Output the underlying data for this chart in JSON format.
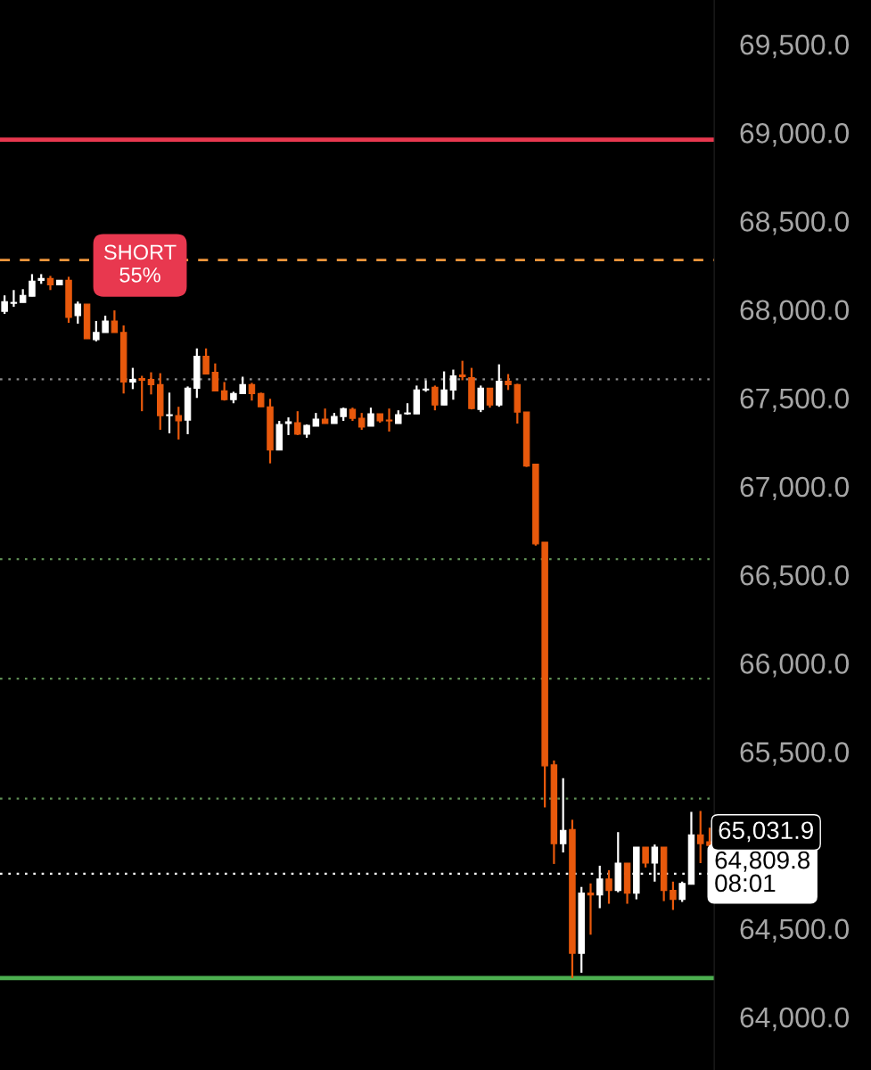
{
  "chart_data": {
    "type": "candlestick",
    "categories": [
      null,
      null,
      null,
      null,
      null,
      null,
      null,
      null,
      null,
      null,
      null,
      null,
      null,
      null,
      null,
      null,
      null,
      null,
      null,
      null,
      null,
      null,
      null,
      null,
      null,
      null,
      null,
      null,
      null,
      null,
      null,
      null,
      null,
      null,
      null,
      null,
      null,
      null,
      null,
      null,
      null,
      null,
      null,
      null,
      null,
      null,
      null,
      null,
      null,
      null,
      null,
      null,
      null,
      null,
      null,
      null,
      null,
      null,
      null,
      null,
      null,
      null,
      null,
      null,
      null,
      null,
      null,
      null,
      null,
      null,
      null,
      null,
      null,
      null,
      null,
      null,
      null,
      null
    ],
    "ohlc": [
      [
        67990,
        68080,
        67975,
        68045
      ],
      [
        68035,
        68110,
        68015,
        68040
      ],
      [
        68040,
        68115,
        68040,
        68080
      ],
      [
        68075,
        68200,
        68075,
        68160
      ],
      [
        68165,
        68200,
        68145,
        68175
      ],
      [
        68175,
        68190,
        68110,
        68140
      ],
      [
        68140,
        68165,
        68140,
        68165
      ],
      [
        68165,
        68185,
        67925,
        67955
      ],
      [
        67965,
        68045,
        67920,
        68030
      ],
      [
        68030,
        68030,
        67835,
        67835
      ],
      [
        67830,
        67935,
        67820,
        67870
      ],
      [
        67870,
        67965,
        67870,
        67935
      ],
      [
        67935,
        67995,
        67870,
        67870
      ],
      [
        67870,
        67910,
        67525,
        67590
      ],
      [
        67590,
        67670,
        67550,
        67605
      ],
      [
        67610,
        67625,
        67425,
        67600
      ],
      [
        67605,
        67645,
        67520,
        67575
      ],
      [
        67575,
        67640,
        67320,
        67400
      ],
      [
        67400,
        67530,
        67300,
        67405
      ],
      [
        67400,
        67450,
        67265,
        67370
      ],
      [
        67375,
        67565,
        67295,
        67555
      ],
      [
        67555,
        67780,
        67500,
        67735
      ],
      [
        67735,
        67780,
        67635,
        67635
      ],
      [
        67645,
        67695,
        67540,
        67540
      ],
      [
        67540,
        67590,
        67485,
        67490
      ],
      [
        67490,
        67535,
        67470,
        67525
      ],
      [
        67525,
        67620,
        67525,
        67575
      ],
      [
        67575,
        67585,
        67485,
        67525
      ],
      [
        67525,
        67530,
        67450,
        67450
      ],
      [
        67450,
        67495,
        67130,
        67205
      ],
      [
        67205,
        67370,
        67205,
        67350
      ],
      [
        67355,
        67390,
        67290,
        67365
      ],
      [
        67360,
        67425,
        67290,
        67295
      ],
      [
        67295,
        67350,
        67275,
        67345
      ],
      [
        67340,
        67415,
        67340,
        67380
      ],
      [
        67380,
        67440,
        67355,
        67355
      ],
      [
        67355,
        67415,
        67355,
        67395
      ],
      [
        67395,
        67445,
        67370,
        67440
      ],
      [
        67435,
        67445,
        67370,
        67385
      ],
      [
        67385,
        67415,
        67320,
        67335
      ],
      [
        67340,
        67445,
        67340,
        67410
      ],
      [
        67410,
        67410,
        67360,
        67370
      ],
      [
        67375,
        67440,
        67310,
        67370
      ],
      [
        67355,
        67430,
        67355,
        67405
      ],
      [
        67410,
        67470,
        67405,
        67415
      ],
      [
        67410,
        67570,
        67410,
        67545
      ],
      [
        67545,
        67600,
        67535,
        67550
      ],
      [
        67560,
        67570,
        67430,
        67460
      ],
      [
        67460,
        67650,
        67460,
        67545
      ],
      [
        67545,
        67660,
        67490,
        67625
      ],
      [
        67630,
        67710,
        67600,
        67620
      ],
      [
        67615,
        67670,
        67435,
        67440
      ],
      [
        67435,
        67570,
        67420,
        67555
      ],
      [
        67555,
        67555,
        67445,
        67460
      ],
      [
        67460,
        67690,
        67450,
        67595
      ],
      [
        67595,
        67635,
        67545,
        67575
      ],
      [
        67575,
        67580,
        67355,
        67420
      ],
      [
        67420,
        67420,
        67110,
        67115
      ],
      [
        67125,
        67125,
        66665,
        66675
      ],
      [
        66685,
        66685,
        65185,
        65420
      ],
      [
        65425,
        65450,
        64865,
        64980
      ],
      [
        64980,
        65350,
        64930,
        65055
      ],
      [
        65060,
        65115,
        64220,
        64360
      ],
      [
        64360,
        64735,
        64250,
        64700
      ],
      [
        64700,
        64755,
        64465,
        64690
      ],
      [
        64690,
        64855,
        64615,
        64780
      ],
      [
        64780,
        64830,
        64640,
        64715
      ],
      [
        64715,
        65045,
        64705,
        64870
      ],
      [
        64870,
        64870,
        64640,
        64700
      ],
      [
        64700,
        64960,
        64665,
        64960
      ],
      [
        64960,
        64960,
        64845,
        64870
      ],
      [
        64870,
        64975,
        64765,
        64960
      ],
      [
        64960,
        64960,
        64655,
        64715
      ],
      [
        64715,
        64765,
        64605,
        64665
      ],
      [
        64665,
        64765,
        64650,
        64755
      ],
      [
        64750,
        65160,
        64750,
        65030
      ],
      [
        65030,
        65165,
        64870,
        64980
      ],
      [
        64990,
        65070,
        64950,
        64970
      ]
    ],
    "colors": [
      "#ffffff",
      "#ffffff",
      "#ffffff",
      "#ffffff",
      "#ffffff",
      "#e8590c",
      "#ffffff",
      "#e8590c",
      "#ffffff",
      "#e8590c",
      "#ffffff",
      "#ffffff",
      "#e8590c",
      "#e8590c",
      "#ffffff",
      "#e8590c",
      "#e8590c",
      "#e8590c",
      "#ffffff",
      "#e8590c",
      "#ffffff",
      "#ffffff",
      "#e8590c",
      "#e8590c",
      "#e8590c",
      "#ffffff",
      "#ffffff",
      "#e8590c",
      "#e8590c",
      "#e8590c",
      "#ffffff",
      "#ffffff",
      "#e8590c",
      "#ffffff",
      "#ffffff",
      "#e8590c",
      "#ffffff",
      "#ffffff",
      "#e8590c",
      "#e8590c",
      "#ffffff",
      "#e8590c",
      "#e8590c",
      "#ffffff",
      "#ffffff",
      "#ffffff",
      "#ffffff",
      "#e8590c",
      "#ffffff",
      "#ffffff",
      "#e8590c",
      "#e8590c",
      "#ffffff",
      "#e8590c",
      "#ffffff",
      "#e8590c",
      "#e8590c",
      "#e8590c",
      "#e8590c",
      "#e8590c",
      "#e8590c",
      "#ffffff",
      "#e8590c",
      "#ffffff",
      "#e8590c",
      "#ffffff",
      "#e8590c",
      "#ffffff",
      "#e8590c",
      "#ffffff",
      "#e8590c",
      "#ffffff",
      "#e8590c",
      "#e8590c",
      "#ffffff",
      "#ffffff",
      "#e8590c",
      "#e8590c"
    ],
    "ylim": [
      63700,
      69750
    ],
    "yticks": [
      {
        "value": 64000,
        "label": "64,000.0"
      },
      {
        "value": 64500,
        "label": "64,500.0"
      },
      {
        "value": 65500,
        "label": "65,500.0"
      },
      {
        "value": 66000,
        "label": "66,000.0"
      },
      {
        "value": 66500,
        "label": "66,500.0"
      },
      {
        "value": 67000,
        "label": "67,000.0"
      },
      {
        "value": 67500,
        "label": "67,500.0"
      },
      {
        "value": 68000,
        "label": "68,000.0"
      },
      {
        "value": 68500,
        "label": "68,500.0"
      },
      {
        "value": 69000,
        "label": "69,000.0"
      },
      {
        "value": 69500,
        "label": "69,500.0"
      }
    ],
    "ref_lines": [
      {
        "axis": "y",
        "value": 68960,
        "color": "#e8384f",
        "line_style": "solid"
      },
      {
        "axis": "y",
        "value": 68280,
        "color": "#f0963c",
        "line_style": "dashed"
      },
      {
        "axis": "y",
        "value": 67605,
        "color": "#8a8a8a",
        "line_style": "dotted"
      },
      {
        "axis": "y",
        "value": 66588,
        "color": "#5f8f55",
        "line_style": "dotted"
      },
      {
        "axis": "y",
        "value": 65913,
        "color": "#5f8f55",
        "line_style": "dotted"
      },
      {
        "axis": "y",
        "value": 65234,
        "color": "#5f8f55",
        "line_style": "dotted"
      },
      {
        "axis": "y",
        "value": 64809.8,
        "color": "#ffffff",
        "line_style": "dotted",
        "label": "64,809.8\n08:01"
      },
      {
        "axis": "y",
        "value": 64220,
        "color": "#4caf50",
        "line_style": "solid"
      }
    ],
    "annotations": [
      "SHORT\n55%",
      "65,031.9"
    ],
    "grid": false
  }
}
